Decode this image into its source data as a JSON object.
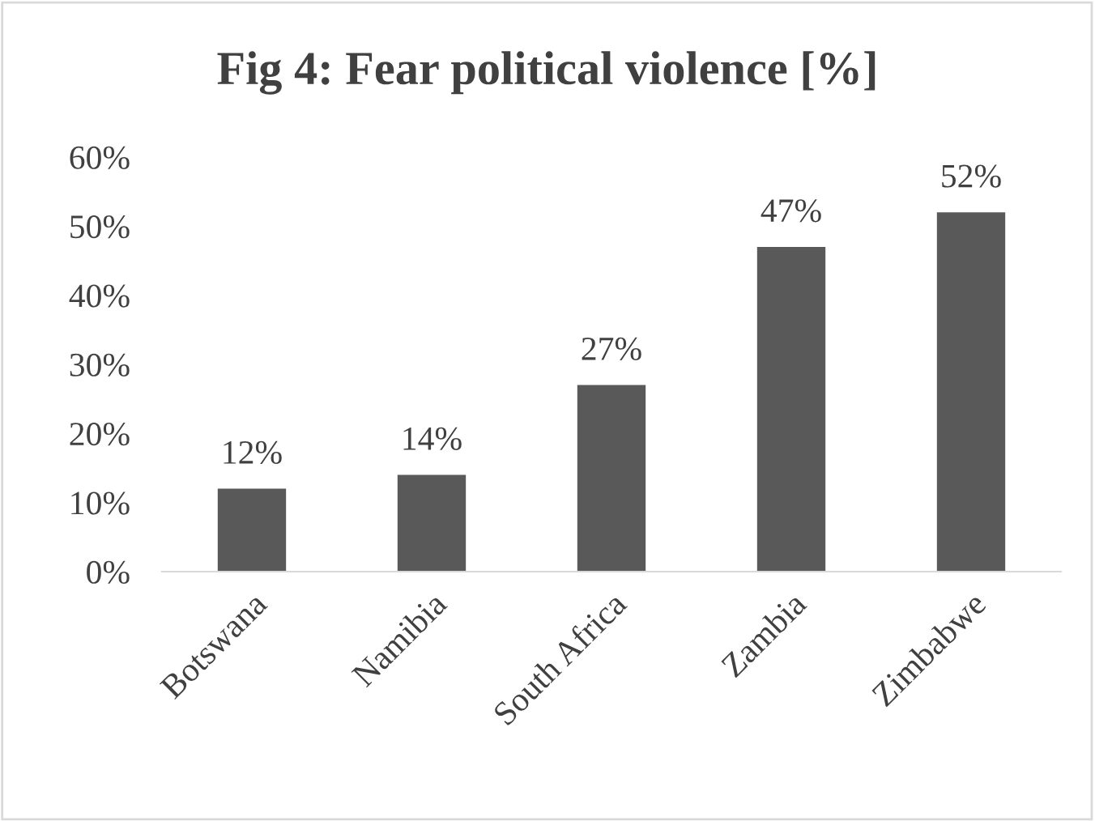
{
  "chart_data": {
    "type": "bar",
    "title": "Fig 4: Fear political violence [%]",
    "categories": [
      "Botswana",
      "Namibia",
      "South Africa",
      "Zambia",
      "Zimbabwe"
    ],
    "values": [
      12,
      14,
      27,
      47,
      52
    ],
    "color": "#595959",
    "value_labels": [
      "12%",
      "14%",
      "27%",
      "47%",
      "52%"
    ],
    "ylim": [
      0,
      60
    ],
    "yticks": [
      {
        "value": 0,
        "label": "0%"
      },
      {
        "value": 10,
        "label": "10%"
      },
      {
        "value": 20,
        "label": "20%"
      },
      {
        "value": 30,
        "label": "30%"
      },
      {
        "value": 40,
        "label": "40%"
      },
      {
        "value": 50,
        "label": "50%"
      },
      {
        "value": 60,
        "label": "60%"
      }
    ],
    "grid": false,
    "legend": false
  }
}
